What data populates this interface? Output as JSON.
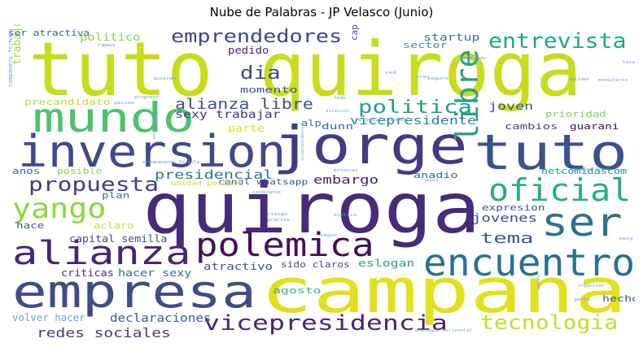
{
  "chart_data": {
    "type": "wordcloud",
    "title": "Nube de Palabras - JP Velasco (Junio)",
    "words": [
      {
        "text": "tuto quiroga",
        "color": "#c8dc1e"
      },
      {
        "text": "jorge",
        "color": "#443a83"
      },
      {
        "text": "quiroga",
        "color": "#472a7a"
      },
      {
        "text": "inversion",
        "color": "#3f4a8a"
      },
      {
        "text": "tuto",
        "color": "#3b528b"
      },
      {
        "text": "campana",
        "color": "#e1e01c"
      },
      {
        "text": "empresa",
        "color": "#3e4c8a"
      },
      {
        "text": "mundo",
        "color": "#4cc26c"
      },
      {
        "text": "encuentro",
        "color": "#2c718e"
      },
      {
        "text": "ser",
        "color": "#2d708e"
      },
      {
        "text": "alianza",
        "color": "#482475"
      },
      {
        "text": "polemica",
        "color": "#440f57"
      },
      {
        "text": "libre",
        "color": "#2e9f84"
      },
      {
        "text": "oficial",
        "color": "#25ac82"
      },
      {
        "text": "yango",
        "color": "#8bd646"
      },
      {
        "text": "propuesta",
        "color": "#433e85"
      },
      {
        "text": "emprendedores",
        "color": "#414487"
      },
      {
        "text": "entrevista",
        "color": "#21a685"
      },
      {
        "text": "vicepresidencia",
        "color": "#482576"
      },
      {
        "text": "tecnologia",
        "color": "#c0df25"
      },
      {
        "text": "politica",
        "color": "#1fa188"
      },
      {
        "text": "alianza libre",
        "color": "#3d4e8a"
      },
      {
        "text": "dia",
        "color": "#3e4989"
      },
      {
        "text": "tema",
        "color": "#38588c"
      },
      {
        "text": "redes sociales",
        "color": "#453882"
      },
      {
        "text": "presidencial",
        "color": "#2b758e"
      },
      {
        "text": "vicepresidente",
        "color": "#26828e"
      },
      {
        "text": "sexy trabajar",
        "color": "#46327e"
      },
      {
        "text": "declaraciones",
        "color": "#355f8d"
      },
      {
        "text": "jovenes",
        "color": "#3e4a89"
      },
      {
        "text": "startup",
        "color": "#2a788e"
      },
      {
        "text": "joven",
        "color": "#3b528b"
      },
      {
        "text": "trabajo",
        "color": "#9fda3a"
      },
      {
        "text": "politico",
        "color": "#84d44b"
      },
      {
        "text": "precandidato",
        "color": "#b5de2b"
      },
      {
        "text": "embargo",
        "color": "#481a6c"
      },
      {
        "text": "capital semilla",
        "color": "#3e4a89"
      },
      {
        "text": "eslogan",
        "color": "#1fa188"
      },
      {
        "text": "hacer sexy",
        "color": "#2c718e"
      },
      {
        "text": "criticas",
        "color": "#472d7b"
      },
      {
        "text": "atractivo",
        "color": "#3b528b"
      },
      {
        "text": "volver hacer",
        "color": "#6a9fd6"
      },
      {
        "text": "pedido",
        "color": "#482173"
      },
      {
        "text": "momento",
        "color": "#3b518b"
      },
      {
        "text": "sector",
        "color": "#4e7fa8"
      },
      {
        "text": "capital",
        "color": "#3d4d8a"
      },
      {
        "text": "ser atractiva",
        "color": "#31688e"
      },
      {
        "text": "parte",
        "color": "#d8e219"
      },
      {
        "text": "dunn",
        "color": "#2c718e"
      },
      {
        "text": "alp",
        "color": "#287d8e"
      },
      {
        "text": "prioridad",
        "color": "#7ad151"
      },
      {
        "text": "cambios",
        "color": "#3f4788"
      },
      {
        "text": "guarani",
        "color": "#46085c"
      },
      {
        "text": "anos",
        "color": "#2f6c8e"
      },
      {
        "text": "posible",
        "color": "#86d549"
      },
      {
        "text": "plan",
        "color": "#2a778e"
      },
      {
        "text": "hace",
        "color": "#3b528b"
      },
      {
        "text": "aclaro",
        "color": "#c2df23"
      },
      {
        "text": "agosto",
        "color": "#2fb47c"
      },
      {
        "text": "sido claros",
        "color": "#3e4a89"
      },
      {
        "text": "expresion",
        "color": "#3b528b"
      },
      {
        "text": "anadio",
        "color": "#2f6b8e"
      },
      {
        "text": "netcomidascom",
        "color": "#21918c"
      },
      {
        "text": "hecho",
        "color": "#39558c"
      },
      {
        "text": "canal whatsapp",
        "color": "#3a548c"
      },
      {
        "text": "unidad posible",
        "color": "#bfdf25"
      },
      {
        "text": "companero formula",
        "color": "#6a9fd6"
      },
      {
        "text": "especulaciones",
        "color": "#6a9fd6"
      },
      {
        "text": "whatsapp horizontal",
        "color": "#6a9fd6"
      },
      {
        "text": "prensa libre",
        "color": "#6a9fd6"
      },
      {
        "text": "acompanante formula",
        "color": "#6a9fd6"
      },
      {
        "text": "riesgo",
        "color": "#6a9fd6"
      },
      {
        "text": "gracias",
        "color": "#6a9fd6"
      },
      {
        "text": "explico",
        "color": "#6a9fd6"
      },
      {
        "text": "candidatos",
        "color": "#6a9fd6"
      },
      {
        "text": "entonces",
        "color": "#6a9fd6"
      },
      {
        "text": "vicepresidencial",
        "color": "#6a9fd6"
      },
      {
        "text": "generado",
        "color": "#6a9fd6"
      },
      {
        "text": "lesa",
        "color": "#6a9fd6"
      },
      {
        "text": "quieren",
        "color": "#6a9fd6"
      },
      {
        "text": "progreso",
        "color": "#6a9fd6"
      },
      {
        "text": "paises",
        "color": "#6a9fd6"
      },
      {
        "text": "siralsin",
        "color": "#6a9fd6"
      },
      {
        "text": "socializar",
        "color": "#6a9fd6"
      },
      {
        "text": "seguro",
        "color": "#6a9fd6"
      },
      {
        "text": "segun",
        "color": "#6a9fd6"
      },
      {
        "text": "monasterio",
        "color": "#6a9fd6"
      },
      {
        "text": "organizan",
        "color": "#6a9fd6"
      },
      {
        "text": "gente",
        "color": "#6a9fd6"
      },
      {
        "text": "sexy",
        "color": "#6a9fd6"
      },
      {
        "text": "vacuna",
        "color": "#6a9fd6"
      },
      {
        "text": "red",
        "color": "#6a9fd6"
      },
      {
        "text": "todo",
        "color": "#6a9fd6"
      },
      {
        "text": "eras",
        "color": "#6a9fd6"
      },
      {
        "text": "aqui",
        "color": "#6a9fd6"
      },
      {
        "text": "mismo",
        "color": "#6a9fd6"
      },
      {
        "text": "ramos",
        "color": "#6a9fd6"
      }
    ]
  }
}
